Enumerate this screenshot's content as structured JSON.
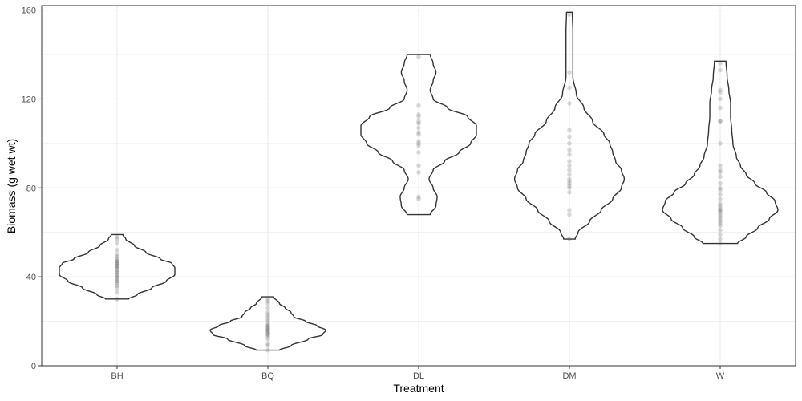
{
  "chart_data": {
    "type": "violin",
    "xlabel": "Treatment",
    "ylabel": "Biomass (g wet wt)",
    "ylim": [
      0,
      162
    ],
    "yticks": [
      0,
      40,
      80,
      120,
      160
    ],
    "categories": [
      "BH",
      "BQ",
      "DL",
      "DM",
      "W"
    ],
    "grid": true,
    "theme": "bw",
    "colors": {
      "violin_outline": "#333333",
      "points": "#555555",
      "grid": "#ebebeb",
      "panel_border": "#333333"
    },
    "groups": [
      {
        "category": "BH",
        "min": 30,
        "max": 59,
        "density": [
          [
            30,
            0.2
          ],
          [
            32,
            0.35
          ],
          [
            35,
            0.6
          ],
          [
            38,
            0.85
          ],
          [
            41,
            1.0
          ],
          [
            44,
            1.0
          ],
          [
            46,
            0.95
          ],
          [
            48,
            0.75
          ],
          [
            51,
            0.5
          ],
          [
            54,
            0.3
          ],
          [
            57,
            0.15
          ],
          [
            59,
            0.1
          ]
        ],
        "points": [
          30,
          33,
          35,
          36,
          37,
          38,
          38,
          39,
          40,
          40,
          41,
          42,
          42,
          43,
          44,
          44,
          45,
          45,
          46,
          46,
          47,
          47,
          48,
          49,
          50,
          52,
          55,
          57,
          58
        ]
      },
      {
        "category": "BQ",
        "min": 7,
        "max": 31,
        "density": [
          [
            7,
            0.2
          ],
          [
            9,
            0.4
          ],
          [
            12,
            0.7
          ],
          [
            14,
            0.95
          ],
          [
            16,
            1.0
          ],
          [
            18,
            0.85
          ],
          [
            20,
            0.65
          ],
          [
            22,
            0.45
          ],
          [
            24,
            0.4
          ],
          [
            26,
            0.3
          ],
          [
            28,
            0.2
          ],
          [
            31,
            0.1
          ]
        ],
        "points": [
          7,
          9,
          10,
          12,
          13,
          14,
          14,
          15,
          15,
          16,
          16,
          17,
          17,
          18,
          18,
          19,
          20,
          21,
          22,
          23,
          24,
          26,
          28,
          29,
          30
        ]
      },
      {
        "category": "DL",
        "min": 68,
        "max": 140,
        "density": [
          [
            68,
            0.2
          ],
          [
            72,
            0.3
          ],
          [
            76,
            0.32
          ],
          [
            80,
            0.25
          ],
          [
            84,
            0.18
          ],
          [
            88,
            0.25
          ],
          [
            92,
            0.45
          ],
          [
            96,
            0.7
          ],
          [
            100,
            0.9
          ],
          [
            104,
            1.0
          ],
          [
            108,
            1.0
          ],
          [
            112,
            0.85
          ],
          [
            116,
            0.5
          ],
          [
            120,
            0.25
          ],
          [
            124,
            0.2
          ],
          [
            128,
            0.25
          ],
          [
            132,
            0.3
          ],
          [
            136,
            0.25
          ],
          [
            140,
            0.2
          ]
        ],
        "points": [
          75,
          76,
          87,
          90,
          96,
          99,
          100,
          101,
          104,
          105,
          107,
          109,
          110,
          112,
          113,
          117,
          139
        ]
      },
      {
        "category": "DM",
        "min": 57,
        "max": 159,
        "density": [
          [
            57,
            0.1
          ],
          [
            60,
            0.15
          ],
          [
            65,
            0.35
          ],
          [
            70,
            0.55
          ],
          [
            75,
            0.75
          ],
          [
            80,
            0.9
          ],
          [
            84,
            0.95
          ],
          [
            88,
            0.9
          ],
          [
            92,
            0.8
          ],
          [
            96,
            0.75
          ],
          [
            100,
            0.7
          ],
          [
            104,
            0.6
          ],
          [
            110,
            0.4
          ],
          [
            116,
            0.25
          ],
          [
            122,
            0.12
          ],
          [
            130,
            0.06
          ],
          [
            140,
            0.06
          ],
          [
            150,
            0.06
          ],
          [
            159,
            0.05
          ]
        ],
        "points": [
          57,
          68,
          70,
          78,
          80,
          81,
          82,
          83,
          84,
          86,
          88,
          90,
          92,
          95,
          97,
          100,
          103,
          106,
          118,
          125,
          132,
          158
        ]
      },
      {
        "category": "W",
        "min": 55,
        "max": 137,
        "density": [
          [
            55,
            0.3
          ],
          [
            58,
            0.45
          ],
          [
            62,
            0.65
          ],
          [
            66,
            0.85
          ],
          [
            70,
            1.0
          ],
          [
            74,
            0.95
          ],
          [
            78,
            0.8
          ],
          [
            82,
            0.6
          ],
          [
            86,
            0.45
          ],
          [
            90,
            0.35
          ],
          [
            94,
            0.28
          ],
          [
            100,
            0.22
          ],
          [
            106,
            0.2
          ],
          [
            112,
            0.18
          ],
          [
            118,
            0.18
          ],
          [
            124,
            0.15
          ],
          [
            130,
            0.12
          ],
          [
            137,
            0.1
          ]
        ],
        "points": [
          55,
          57,
          59,
          61,
          63,
          64,
          65,
          66,
          67,
          68,
          69,
          70,
          70,
          71,
          72,
          73,
          75,
          77,
          79,
          80,
          82,
          85,
          87,
          88,
          90,
          100,
          110,
          110,
          116,
          120,
          123,
          124,
          133,
          136
        ]
      }
    ]
  }
}
